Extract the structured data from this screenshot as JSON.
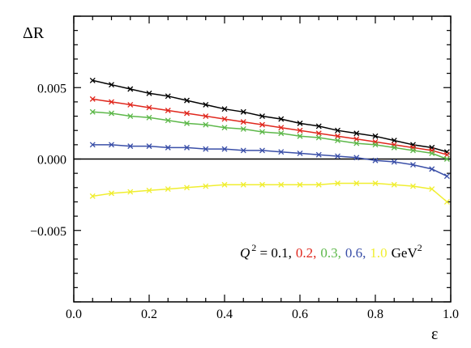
{
  "chart_data": {
    "type": "line",
    "ylabel": "ΔR",
    "xlabel": "ε",
    "xlim": [
      0.0,
      1.0
    ],
    "ylim": [
      -0.01,
      0.01
    ],
    "xticks": [
      "0.0",
      "0.2",
      "0.4",
      "0.6",
      "0.8",
      "1.0"
    ],
    "yticks": [
      "−0.005",
      "0.000",
      "0.005"
    ],
    "ytick_values": [
      -0.005,
      0.0,
      0.005
    ],
    "zero_line": true,
    "grid": false,
    "marker": "x",
    "x": [
      0.05,
      0.1,
      0.15,
      0.2,
      0.25,
      0.3,
      0.35,
      0.4,
      0.45,
      0.5,
      0.55,
      0.6,
      0.65,
      0.7,
      0.75,
      0.8,
      0.85,
      0.9,
      0.95,
      0.99
    ],
    "series": [
      {
        "color": "#000000",
        "values": [
          0.0055,
          0.0052,
          0.0049,
          0.0046,
          0.0044,
          0.0041,
          0.0038,
          0.0035,
          0.0033,
          0.003,
          0.0028,
          0.0025,
          0.0023,
          0.002,
          0.0018,
          0.0016,
          0.0013,
          0.001,
          0.0008,
          0.0005
        ]
      },
      {
        "color": "#e0281e",
        "values": [
          0.0042,
          0.004,
          0.0038,
          0.0036,
          0.0034,
          0.0032,
          0.003,
          0.0028,
          0.0026,
          0.0024,
          0.0022,
          0.002,
          0.0018,
          0.0016,
          0.0014,
          0.0012,
          0.001,
          0.0008,
          0.0006,
          0.0003
        ]
      },
      {
        "color": "#5db84a",
        "values": [
          0.0033,
          0.0032,
          0.003,
          0.0029,
          0.0027,
          0.0025,
          0.0024,
          0.0022,
          0.0021,
          0.0019,
          0.0018,
          0.0016,
          0.0015,
          0.0013,
          0.0011,
          0.001,
          0.0008,
          0.0006,
          0.0004,
          0.0
        ]
      },
      {
        "color": "#3a4fa8",
        "values": [
          0.001,
          0.001,
          0.0009,
          0.0009,
          0.0008,
          0.0008,
          0.0007,
          0.0007,
          0.0006,
          0.0006,
          0.0005,
          0.0004,
          0.0003,
          0.0002,
          0.0001,
          -0.0001,
          -0.0002,
          -0.0004,
          -0.0007,
          -0.0012
        ]
      },
      {
        "color": "#f0ee30",
        "values": [
          -0.0026,
          -0.0024,
          -0.0023,
          -0.0022,
          -0.0021,
          -0.002,
          -0.0019,
          -0.0018,
          -0.0018,
          -0.0018,
          -0.0018,
          -0.0018,
          -0.0018,
          -0.0017,
          -0.0017,
          -0.0017,
          -0.0018,
          -0.0019,
          -0.0021,
          -0.003
        ]
      }
    ],
    "legend": {
      "prefix_symbol": "Q",
      "prefix_sup": "2",
      "prefix_rest": " = ",
      "items": [
        {
          "text": "0.1,",
          "color": "#000000"
        },
        {
          "text": "0.2,",
          "color": "#e0281e"
        },
        {
          "text": "0.3,",
          "color": "#5db84a"
        },
        {
          "text": "0.6,",
          "color": "#3a4fa8"
        },
        {
          "text": "1.0",
          "color": "#f0ee30"
        }
      ],
      "unit": "GeV",
      "unit_sup": "2",
      "placement": "lower-right"
    }
  }
}
